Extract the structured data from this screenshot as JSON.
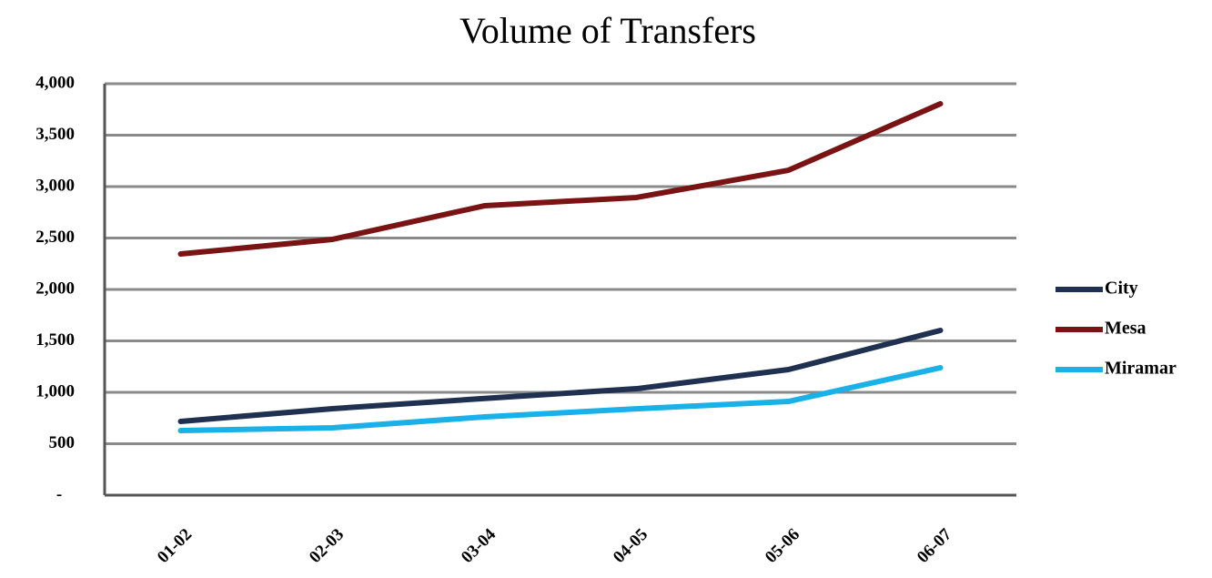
{
  "chart_data": {
    "type": "line",
    "title": "Volume of Transfers",
    "categories": [
      "01-02",
      "02-03",
      "03-04",
      "04-05",
      "05-06",
      "06-07"
    ],
    "series": [
      {
        "name": "City",
        "color": "#1f3050",
        "values": [
          717,
          841,
          940,
          1035,
          1221,
          1602
        ]
      },
      {
        "name": "Mesa",
        "color": "#7a1414",
        "values": [
          2345,
          2487,
          2814,
          2894,
          3159,
          3805
        ]
      },
      {
        "name": "Miramar",
        "color": "#1ab0e8",
        "values": [
          628,
          655,
          761,
          840,
          911,
          1239
        ]
      }
    ],
    "ylim": [
      0,
      4000
    ],
    "yticks": [
      {
        "value": 0,
        "label": "-"
      },
      500,
      {
        "value": 1000,
        "label": "1,000"
      },
      {
        "value": 1500,
        "label": "1,500"
      },
      {
        "value": 2000,
        "label": "2,000"
      },
      {
        "value": 2500,
        "label": "2,500"
      },
      {
        "value": 3000,
        "label": "3,000"
      },
      {
        "value": 3500,
        "label": "3,500"
      },
      {
        "value": 4000,
        "label": "4,000"
      }
    ],
    "grid": true,
    "legend": "right"
  }
}
